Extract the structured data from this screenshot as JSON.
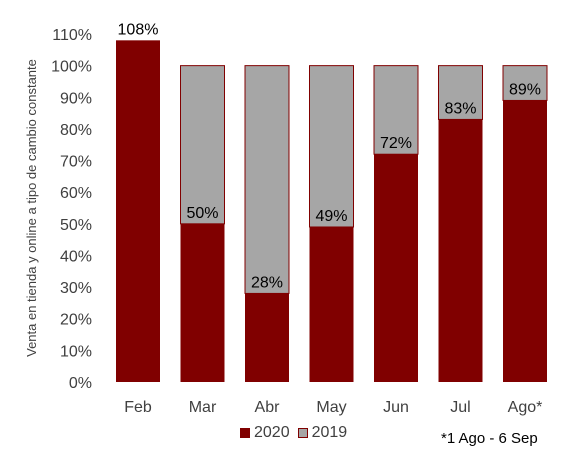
{
  "chart_data": {
    "type": "bar",
    "stacked": true,
    "categories": [
      "Feb",
      "Mar",
      "Abr",
      "May",
      "Jun",
      "Jul",
      "Ago*"
    ],
    "series": [
      {
        "name": "2020",
        "values": [
          108,
          50,
          28,
          49,
          72,
          83,
          89
        ],
        "color": "#800000"
      },
      {
        "name": "2019",
        "values": [
          0,
          50,
          72,
          51,
          28,
          17,
          11
        ],
        "color": "#a6a6a6"
      }
    ],
    "data_labels": [
      "108%",
      "50%",
      "28%",
      "49%",
      "72%",
      "83%",
      "89%"
    ],
    "ylabel": "Venta en tienda y online a tipo de cambio constante",
    "ylim": [
      0,
      110
    ],
    "yticks": [
      "0%",
      "10%",
      "20%",
      "30%",
      "40%",
      "50%",
      "60%",
      "70%",
      "80%",
      "90%",
      "100%",
      "110%"
    ],
    "grid": false,
    "legend_position": "bottom"
  },
  "footnote": "*1 Ago - 6 Sep"
}
